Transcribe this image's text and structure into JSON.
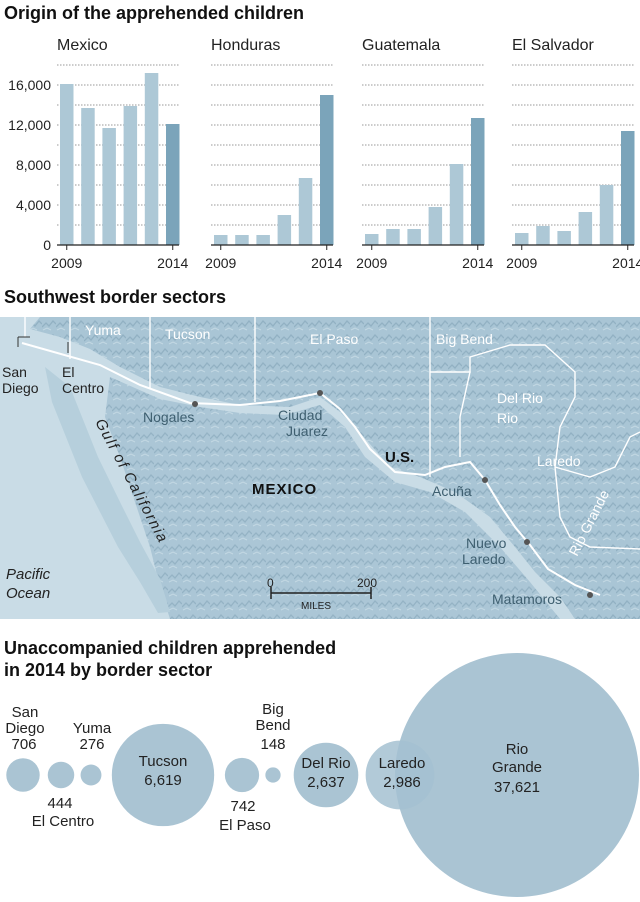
{
  "section1": {
    "title": "Origin of the apprehended children"
  },
  "section2": {
    "title": "Southwest border sectors"
  },
  "section3": {
    "title_line1": "Unaccompanied children apprehended",
    "title_line2": "in 2014 by border sector"
  },
  "chart_data": [
    {
      "type": "bar",
      "title": "Mexico",
      "categories": [
        "2009",
        "2010",
        "2011",
        "2012",
        "2013",
        "2014"
      ],
      "values": [
        16100,
        13700,
        11700,
        13900,
        17200,
        12100
      ],
      "x_tick_labels": [
        "2009",
        "2014"
      ],
      "y_ticks": [
        "0",
        "4,000",
        "8,000",
        "12,000",
        "16,000"
      ],
      "ylim": [
        0,
        18000
      ],
      "grid": true
    },
    {
      "type": "bar",
      "title": "Honduras",
      "categories": [
        "2009",
        "2010",
        "2011",
        "2012",
        "2013",
        "2014"
      ],
      "values": [
        1000,
        1000,
        1000,
        3000,
        6700,
        15000
      ],
      "x_tick_labels": [
        "2009",
        "2014"
      ],
      "ylim": [
        0,
        18000
      ],
      "grid": true
    },
    {
      "type": "bar",
      "title": "Guatemala",
      "categories": [
        "2009",
        "2010",
        "2011",
        "2012",
        "2013",
        "2014"
      ],
      "values": [
        1100,
        1600,
        1600,
        3800,
        8100,
        12700
      ],
      "x_tick_labels": [
        "2009",
        "2014"
      ],
      "ylim": [
        0,
        18000
      ],
      "grid": true
    },
    {
      "type": "bar",
      "title": "El Salvador",
      "categories": [
        "2009",
        "2010",
        "2011",
        "2012",
        "2013",
        "2014"
      ],
      "values": [
        1200,
        1900,
        1400,
        3300,
        6000,
        11400
      ],
      "x_tick_labels": [
        "2009",
        "2014"
      ],
      "ylim": [
        0,
        18000
      ],
      "grid": true
    },
    {
      "type": "bubble",
      "title": "Unaccompanied children apprehended in 2014 by border sector",
      "categories": [
        "San Diego",
        "El Centro",
        "Yuma",
        "Tucson",
        "El Paso",
        "Big Bend",
        "Del Rio",
        "Laredo",
        "Rio Grande"
      ],
      "values": [
        706,
        444,
        276,
        6619,
        742,
        148,
        2637,
        2986,
        37621
      ],
      "value_labels": [
        "706",
        "444",
        "276",
        "6,619",
        "742",
        "148",
        "2,637",
        "2,986",
        "37,621"
      ]
    }
  ],
  "map": {
    "sectors": [
      "Yuma",
      "Tucson",
      "El Paso",
      "Big Bend",
      "Del Rio",
      "Laredo",
      "Rio Grande"
    ],
    "sector_san_diego": [
      "San",
      "Diego"
    ],
    "sector_el_centro": [
      "El",
      "Centro"
    ],
    "cities": {
      "nogales": "Nogales",
      "ciudad": "Ciudad",
      "juarez": "Juarez",
      "acuna": "Acuña",
      "nuevo": "Nuevo",
      "laredo": "Laredo",
      "matamoros": "Matamoros"
    },
    "countries": {
      "mexico": "MEXICO",
      "us": "U.S."
    },
    "water": {
      "gulf": "Gulf of California",
      "pacific": "Pacific",
      "ocean": "Ocean"
    },
    "scale": {
      "zero": "0",
      "max": "200",
      "unit": "MILES"
    }
  },
  "colors": {
    "bar": "#adc8d6",
    "bar_dark": "#7ba4ba",
    "bubble": "#a5c1d1",
    "map_land": "#aecad9",
    "border": "#ffffff",
    "text": "#222222"
  }
}
